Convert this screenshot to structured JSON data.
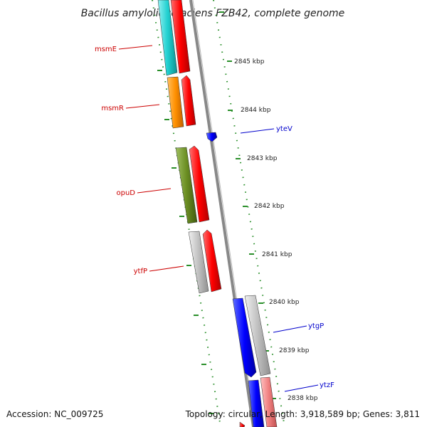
{
  "title": "Bacillus amyloliquefaciens FZB42, complete genome",
  "footer": {
    "accession": "Accession: NC_009725",
    "topology": "Topology: circular, Length: 3,918,589 bp; Genes: 3,811"
  },
  "ticks": [
    "2845 kbp",
    "2844 kbp",
    "2843 kbp",
    "2842 kbp",
    "2841 kbp",
    "2840 kbp",
    "2839 kbp",
    "2838 kbp"
  ],
  "genes": {
    "msmE": "msmE",
    "msmR": "msmR",
    "yteV": "yteV",
    "opuD": "opuD",
    "ytfP": "ytfP",
    "ytgP": "ytgP",
    "ytzF": "ytzF"
  },
  "colors": {
    "forward_strand": "#ff0000",
    "reverse_strand": "#0000ff",
    "backbone": "#888888",
    "ticks": "#006600",
    "forward_label": "#cc0000",
    "reverse_label": "#0000cc"
  }
}
